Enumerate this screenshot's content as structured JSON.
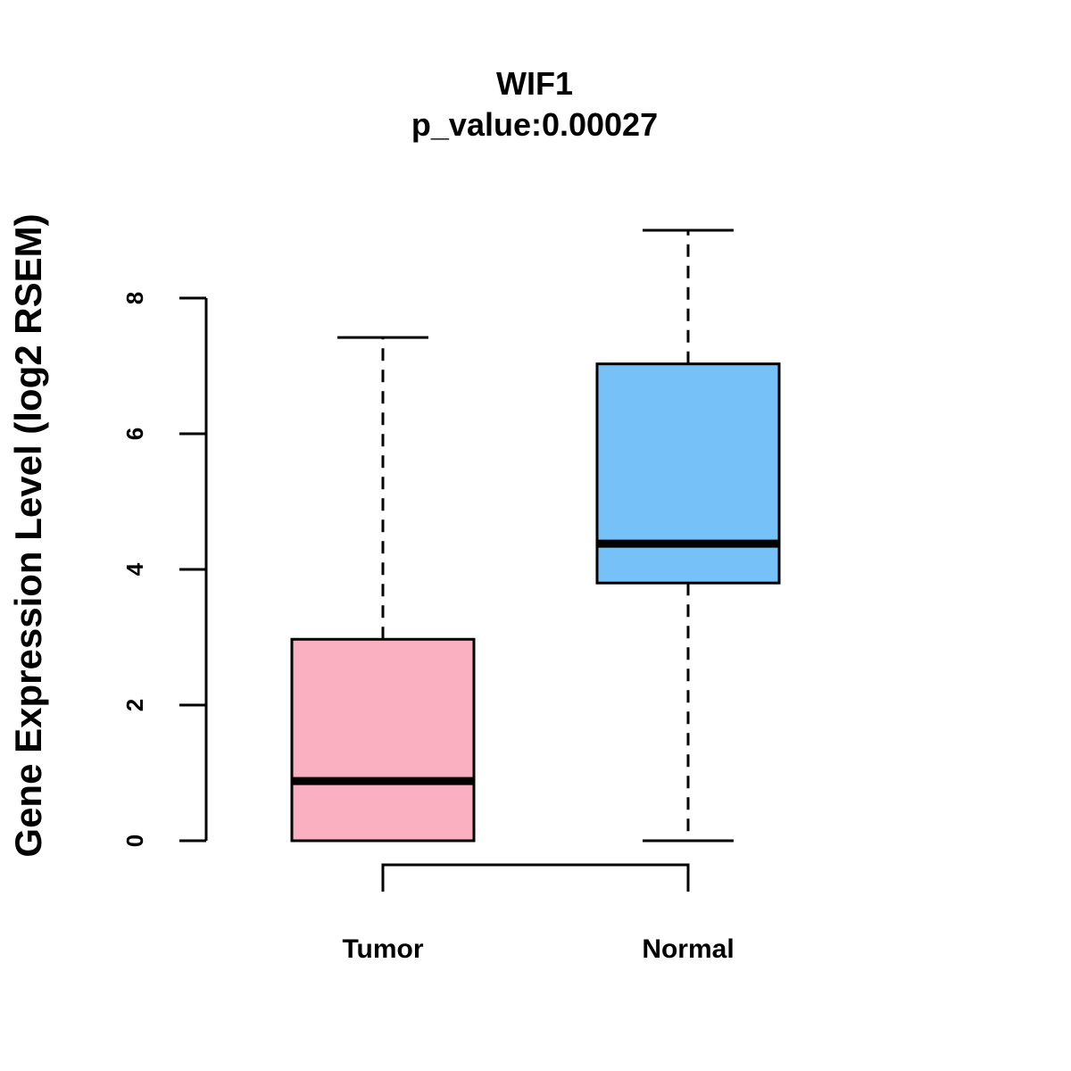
{
  "chart_data": {
    "type": "box",
    "title": "WIF1",
    "subtitle": "p_value:0.00027",
    "xlabel": "",
    "ylabel": "Gene Expression Level (log2 RSEM)",
    "ylim": [
      0,
      8
    ],
    "yticks": [
      0,
      2,
      4,
      6,
      8
    ],
    "categories": [
      "Tumor",
      "Normal"
    ],
    "series": [
      {
        "name": "Tumor",
        "min": 0,
        "q1": 0,
        "median": 0.88,
        "q3": 2.97,
        "max": 7.42,
        "color": "#FBB0C2"
      },
      {
        "name": "Normal",
        "min": 0,
        "q1": 3.8,
        "median": 4.38,
        "q3": 7.03,
        "max": 9.0,
        "color": "#77C1F9"
      }
    ],
    "significance_bracket": {
      "between": [
        "Tumor",
        "Normal"
      ]
    }
  }
}
